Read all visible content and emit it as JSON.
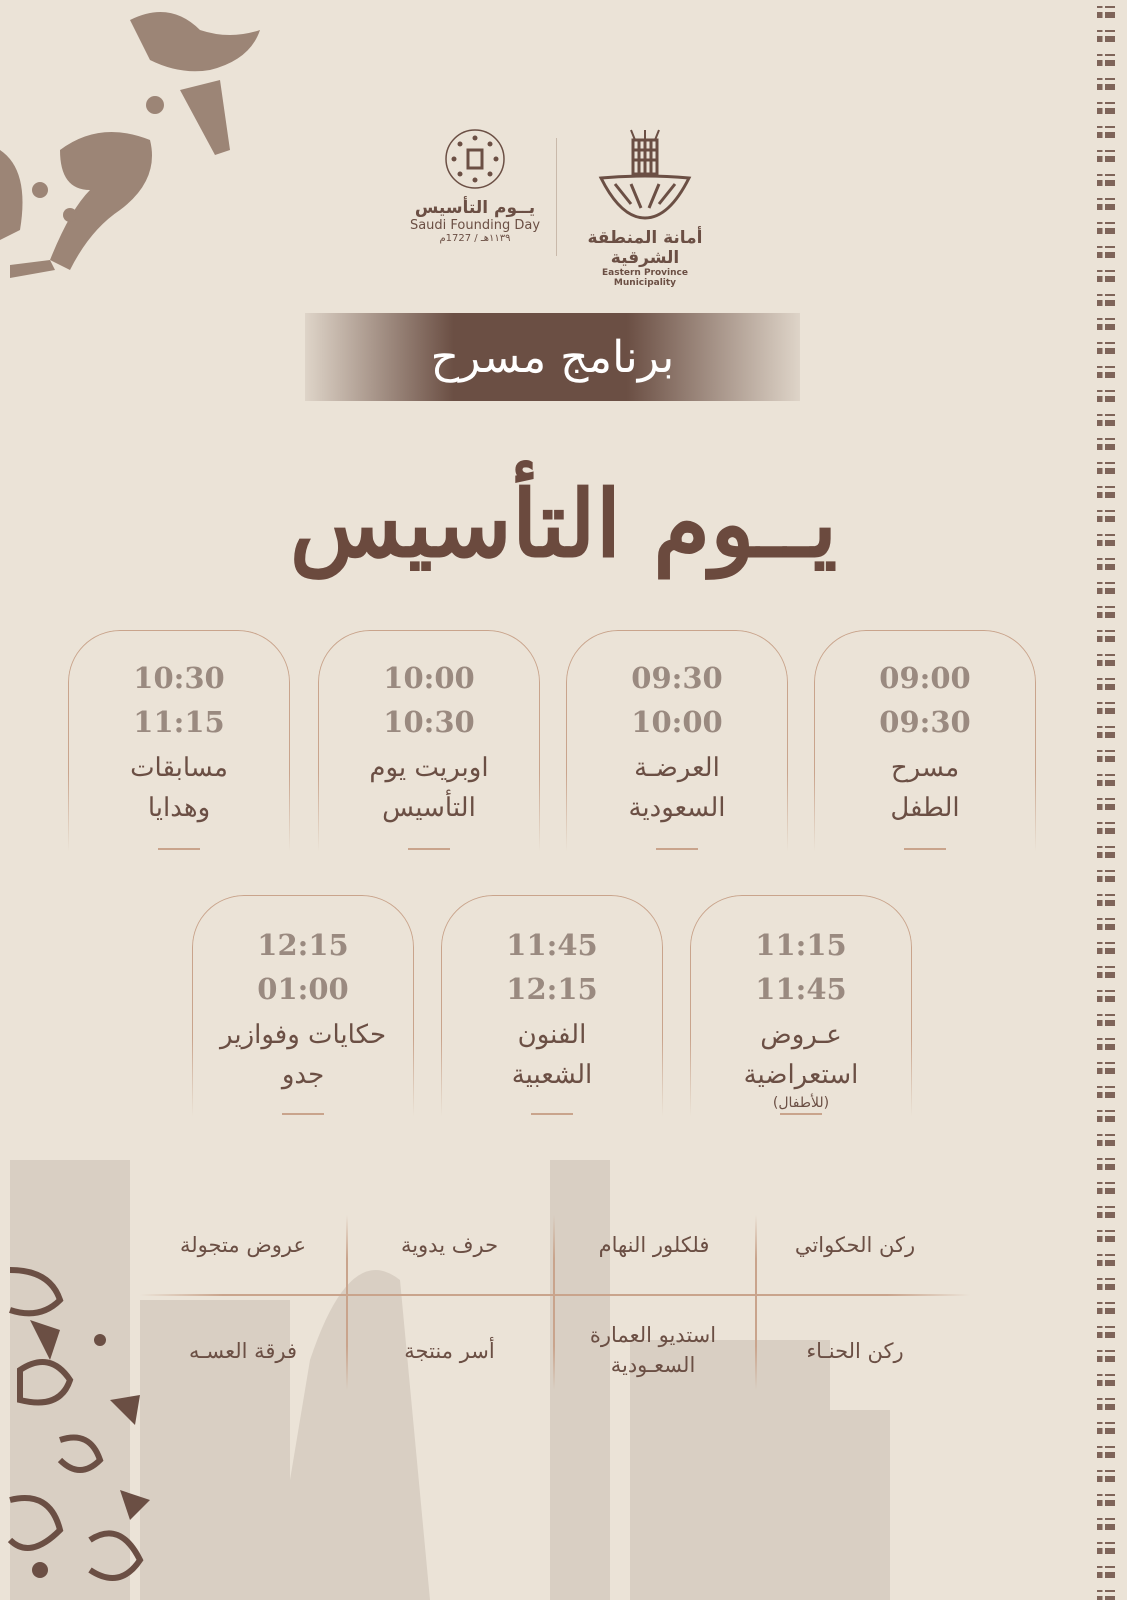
{
  "logos": {
    "founding_day": {
      "arabic": "يــوم التأسيس",
      "english": "Saudi Founding Day",
      "dates": "١١٣٩هـ / 1727م"
    },
    "municipality": {
      "arabic": "أمانة المنطقة الشرقية",
      "english": "Eastern Province Municipality"
    }
  },
  "banner": "برنامج مسرح",
  "title": "يــوم التأسيس",
  "schedule": [
    {
      "start": "09:00",
      "end": "09:30",
      "line1": "مسرح",
      "line2": "الطفل",
      "note": ""
    },
    {
      "start": "09:30",
      "end": "10:00",
      "line1": "العرضـة",
      "line2": "السعودية",
      "note": ""
    },
    {
      "start": "10:00",
      "end": "10:30",
      "line1": "اوبريت يوم",
      "line2": "التأسيس",
      "note": ""
    },
    {
      "start": "10:30",
      "end": "11:15",
      "line1": "مسابقات",
      "line2": "وهدايا",
      "note": ""
    },
    {
      "start": "11:15",
      "end": "11:45",
      "line1": "عـروض",
      "line2": "استعراضية",
      "note": "(للأطفال)"
    },
    {
      "start": "11:45",
      "end": "12:15",
      "line1": "الفنون",
      "line2": "الشعبية",
      "note": ""
    },
    {
      "start": "12:15",
      "end": "01:00",
      "line1": "حكايات وفوازير",
      "line2": "جدو",
      "note": ""
    }
  ],
  "activities": [
    [
      "ركن الحكواتي",
      "فلكلور النهام",
      "حرف يدوية",
      "عروض متجولة"
    ],
    [
      "ركن الحنـاء",
      "استديو العمارة السعـودية",
      "أسر منتجة",
      "فرقة العسـه"
    ]
  ],
  "colors": {
    "background": "#ebe3d7",
    "brown": "#6b4f44",
    "accent_line": "#c9a48c",
    "time_gray": "#9a8a80"
  }
}
